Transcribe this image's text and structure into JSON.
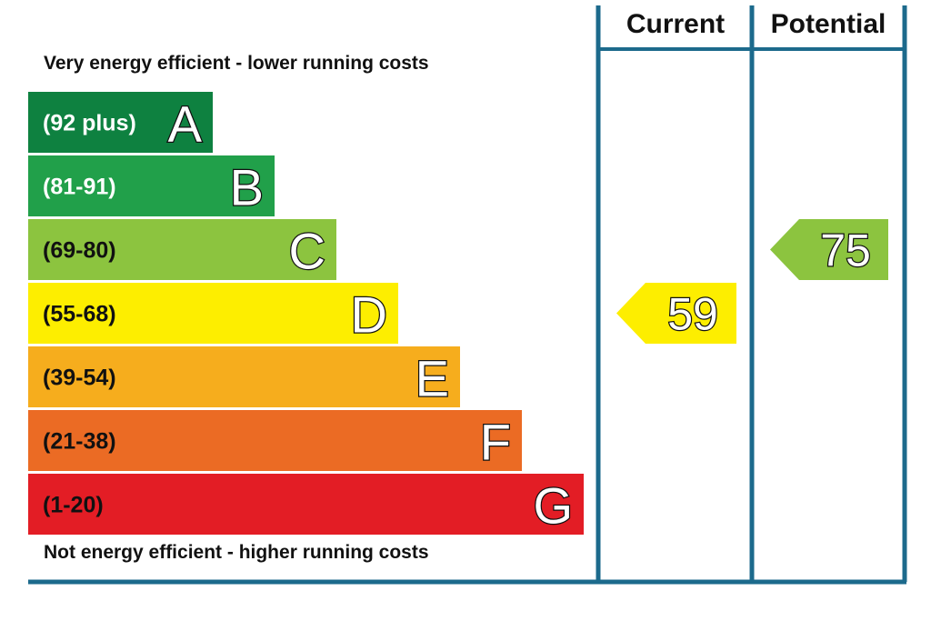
{
  "chart_data": {
    "type": "bar",
    "top_caption": "Very energy efficient - lower running costs",
    "bottom_caption": "Not energy efficient - higher running costs",
    "columns": [
      "Current",
      "Potential"
    ],
    "bands": [
      {
        "letter": "A",
        "range": "(92 plus)",
        "color": "#0e8140"
      },
      {
        "letter": "B",
        "range": "(81-91)",
        "color": "#21a04a"
      },
      {
        "letter": "C",
        "range": "(69-80)",
        "color": "#8cc43f"
      },
      {
        "letter": "D",
        "range": "(55-68)",
        "color": "#fdee00"
      },
      {
        "letter": "E",
        "range": "(39-54)",
        "color": "#f6ad1d"
      },
      {
        "letter": "F",
        "range": "(21-38)",
        "color": "#eb6b24"
      },
      {
        "letter": "G",
        "range": "(1-20)",
        "color": "#e31d25"
      }
    ],
    "ratings": [
      {
        "column": "Current",
        "value": 59,
        "band": "D",
        "color": "#fdee00"
      },
      {
        "column": "Potential",
        "value": 75,
        "band": "C",
        "color": "#8cc43f"
      }
    ],
    "frame_color": "#1c6a8c"
  }
}
